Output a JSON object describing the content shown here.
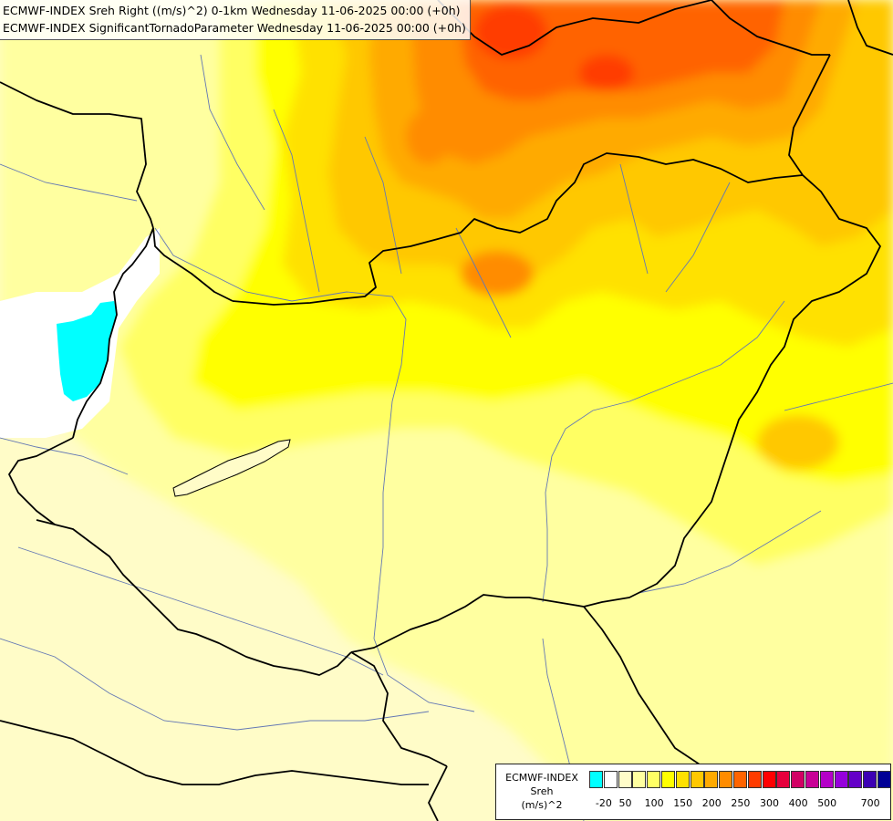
{
  "titles": {
    "line1": "ECMWF-INDEX Sreh Right ((m/s)^2) 0-1km Wednesday 11-06-2025 00:00 (+0h)",
    "line2": "ECMWF-INDEX SignificantTornadoParameter Wednesday 11-06-2025 00:00 (+0h)"
  },
  "legend": {
    "source": "ECMWF-INDEX",
    "variable": "Sreh",
    "unit": "(m/s)^2",
    "colors": [
      "#00ffff",
      "#ffffff",
      "#fffcc8",
      "#ffffa0",
      "#ffff64",
      "#ffff00",
      "#ffe100",
      "#ffc800",
      "#ffaa00",
      "#ff8c00",
      "#ff6400",
      "#ff3c00",
      "#ff0000",
      "#e6003c",
      "#d20064",
      "#c80096",
      "#b400c8",
      "#9600dc",
      "#6400c8",
      "#3c00b4",
      "#000096"
    ],
    "ticks": [
      "-20",
      "50",
      "100",
      "150",
      "200",
      "250",
      "300",
      "400",
      "500",
      "700"
    ]
  }
}
